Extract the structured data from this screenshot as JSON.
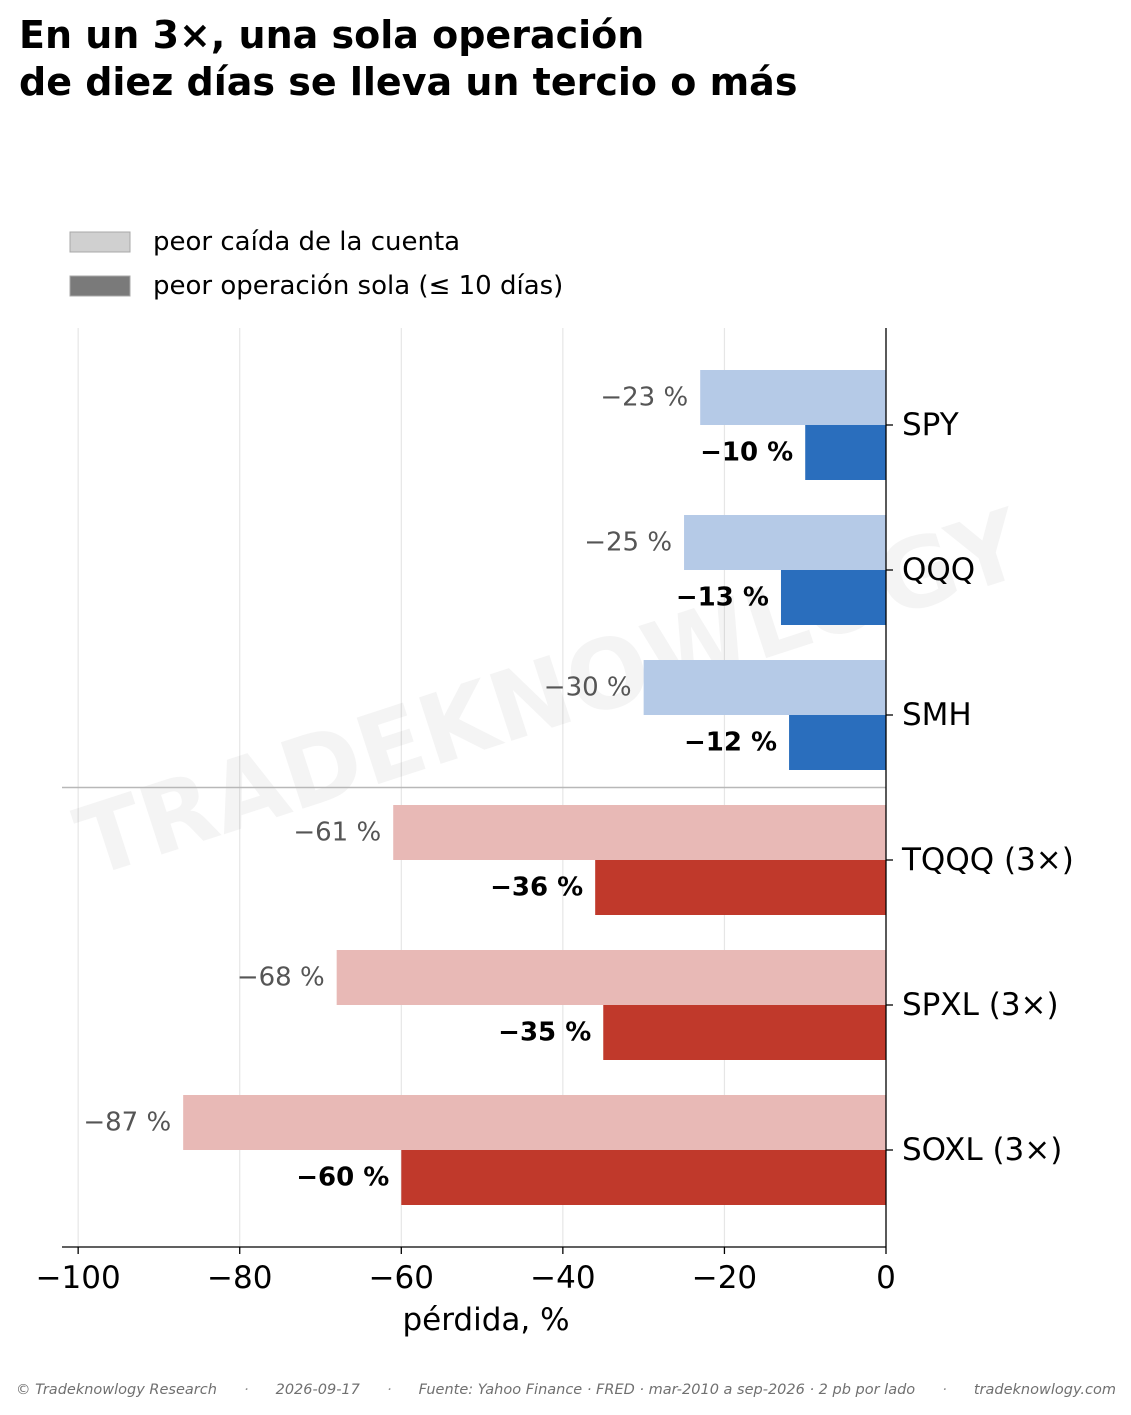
{
  "header": {
    "title_lines": [
      "En un 3×, una sola operación",
      "de diez días se lleva un tercio o más"
    ]
  },
  "watermark": "TRADEKNOWLOGY",
  "colors": {
    "unlev_light": "#b5cae7",
    "unlev_dark": "#2a6ebd",
    "lev_light": "#e8b9b6",
    "lev_dark": "#c0392b",
    "legend_light": "#d0d0d0",
    "legend_dark": "#7a7a7a",
    "drawdown_label": "#555555",
    "trade_label": "#000000"
  },
  "chart_data": {
    "type": "bar",
    "orientation": "horizontal",
    "categories": [
      "SPY",
      "QQQ",
      "SMH",
      "TQQQ (3×)",
      "SPXL (3×)",
      "SOXL (3×)"
    ],
    "leveraged": [
      false,
      false,
      false,
      true,
      true,
      true
    ],
    "series": [
      {
        "name": "peor caída de la cuenta",
        "values": [
          -23,
          -25,
          -30,
          -61,
          -68,
          -87
        ],
        "labels": [
          "−23 %",
          "−25 %",
          "−30 %",
          "−61 %",
          "−68 %",
          "−87 %"
        ]
      },
      {
        "name": "peor operación sola (≤ 10 días)",
        "values": [
          -10,
          -13,
          -12,
          -36,
          -35,
          -60
        ],
        "labels": [
          "−10 %",
          "−13 %",
          "−12 %",
          "−36 %",
          "−35 %",
          "−60 %"
        ]
      }
    ],
    "xlabel": "pérdida, %",
    "ylabel": "",
    "xlim": [
      -102,
      0
    ],
    "xticks": [
      -100,
      -80,
      -60,
      -40,
      -20,
      0
    ],
    "xtick_labels": [
      "−100",
      "−80",
      "−60",
      "−40",
      "−20",
      "0"
    ],
    "y_axis_side": "right",
    "grid": "x-major",
    "legend": "top-left",
    "separator_between": [
      "SMH",
      "TQQQ (3×)"
    ]
  },
  "footer": {
    "copyright": "© Tradeknowlogy Research",
    "date": "2026-09-17",
    "source": "Fuente: Yahoo Finance · FRED · mar-2010 a sep-2026 · 2 pb por lado",
    "site": "tradeknowlogy.com",
    "separator": "·"
  }
}
